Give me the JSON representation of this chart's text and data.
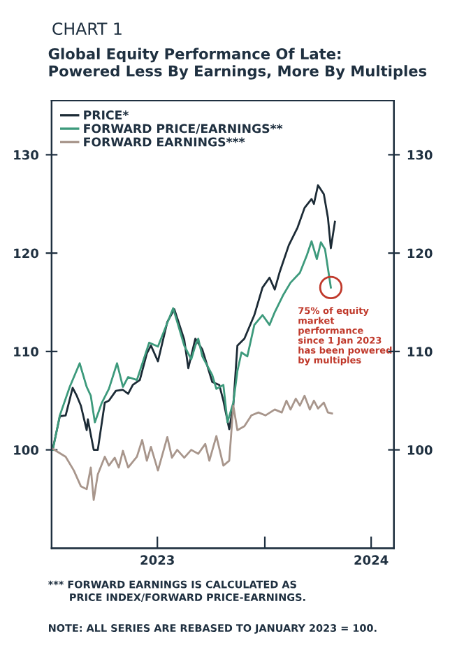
{
  "chart_data": {
    "type": "line",
    "subtitle": "CHART 1",
    "title": "Global Equity Performance Of Late:\nPowered Less By Earnings, More By Multiples",
    "series": [
      {
        "name": "PRICE*",
        "color": "#1c2b36",
        "x": [
          "2023-01-03",
          "2023-01-15",
          "2023-01-25",
          "2023-02-06",
          "2023-02-13",
          "2023-02-20",
          "2023-03-02",
          "2023-03-04",
          "2023-03-14",
          "2023-03-21",
          "2023-04-02",
          "2023-04-09",
          "2023-04-21",
          "2023-05-03",
          "2023-05-12",
          "2023-05-20",
          "2023-06-01",
          "2023-06-13",
          "2023-06-20",
          "2023-07-02",
          "2023-07-18",
          "2023-07-30",
          "2023-08-16",
          "2023-08-23",
          "2023-09-04",
          "2023-09-16",
          "2023-10-03",
          "2023-10-15",
          "2023-10-22",
          "2023-11-01",
          "2023-11-08",
          "2023-11-15",
          "2023-11-27",
          "2023-12-14",
          "2023-12-28",
          "2024-01-09",
          "2024-01-18",
          "2024-01-26",
          "2024-02-11",
          "2024-02-26",
          "2024-03-09",
          "2024-03-21",
          "2024-03-25",
          "2024-04-01",
          "2024-04-11",
          "2024-04-18",
          "2024-04-23",
          "2024-04-30"
        ],
        "values": [
          100.1,
          103.4,
          103.5,
          106.3,
          105.5,
          104.5,
          102,
          103.1,
          100,
          100,
          104.8,
          105,
          106,
          106.1,
          105.7,
          106.6,
          107.1,
          109.8,
          110.6,
          109,
          113,
          114.3,
          111.2,
          108.3,
          111.3,
          110.2,
          106.9,
          106.6,
          105,
          102.1,
          104.5,
          110.6,
          111.3,
          113.7,
          116.5,
          117.5,
          116.3,
          118,
          120.8,
          122.6,
          124.6,
          125.5,
          125,
          126.9,
          126,
          123.6,
          120.5,
          123.2
        ]
      },
      {
        "name": "FORWARD PRICE/EARNINGS**",
        "color": "#3d9a7c",
        "x": [
          "2023-01-03",
          "2023-01-15",
          "2023-02-01",
          "2023-02-18",
          "2023-03-02",
          "2023-03-09",
          "2023-03-16",
          "2023-03-28",
          "2023-04-09",
          "2023-04-23",
          "2023-05-03",
          "2023-05-12",
          "2023-05-27",
          "2023-06-17",
          "2023-07-02",
          "2023-07-14",
          "2023-07-28",
          "2023-08-16",
          "2023-08-28",
          "2023-09-04",
          "2023-09-09",
          "2023-09-16",
          "2023-10-03",
          "2023-10-10",
          "2023-10-22",
          "2023-10-29",
          "2023-11-08",
          "2023-11-15",
          "2023-11-22",
          "2023-12-02",
          "2023-12-14",
          "2023-12-28",
          "2024-01-09",
          "2024-01-18",
          "2024-02-02",
          "2024-02-14",
          "2024-03-01",
          "2024-03-13",
          "2024-03-21",
          "2024-03-30",
          "2024-04-06",
          "2024-04-13",
          "2024-04-23"
        ],
        "values": [
          100,
          103.5,
          106.4,
          108.8,
          106.4,
          105.5,
          102.8,
          104.8,
          106.2,
          108.8,
          106.4,
          107.4,
          107.1,
          110.9,
          110.5,
          112.3,
          114.4,
          110.6,
          109.2,
          110.6,
          111.3,
          109.5,
          107.6,
          106.2,
          106.6,
          102.8,
          104.8,
          108,
          109.9,
          109.5,
          112.7,
          113.7,
          112.7,
          114,
          115.8,
          117,
          118,
          119.8,
          121.2,
          119.4,
          121.1,
          120.4,
          116.5
        ]
      },
      {
        "name": "FORWARD EARNINGS***",
        "color": "#a8968c",
        "x": [
          "2023-01-03",
          "2023-01-25",
          "2023-02-08",
          "2023-02-20",
          "2023-03-02",
          "2023-03-09",
          "2023-03-14",
          "2023-03-21",
          "2023-04-02",
          "2023-04-09",
          "2023-04-19",
          "2023-04-26",
          "2023-05-03",
          "2023-05-12",
          "2023-05-27",
          "2023-06-05",
          "2023-06-13",
          "2023-06-20",
          "2023-07-02",
          "2023-07-18",
          "2023-07-26",
          "2023-08-04",
          "2023-08-16",
          "2023-08-28",
          "2023-09-09",
          "2023-09-21",
          "2023-09-28",
          "2023-10-10",
          "2023-10-22",
          "2023-11-01",
          "2023-11-08",
          "2023-11-15",
          "2023-11-27",
          "2023-12-09",
          "2023-12-21",
          "2024-01-02",
          "2024-01-18",
          "2024-01-30",
          "2024-02-07",
          "2024-02-14",
          "2024-02-23",
          "2024-03-01",
          "2024-03-09",
          "2024-03-18",
          "2024-03-25",
          "2024-04-01",
          "2024-04-11",
          "2024-04-18",
          "2024-04-25"
        ],
        "values": [
          100.1,
          99.3,
          97.9,
          96.3,
          96,
          98.2,
          94.9,
          97.5,
          99.3,
          98.4,
          99.2,
          98.2,
          99.9,
          98.2,
          99.3,
          101,
          98.9,
          100.3,
          97.9,
          101.3,
          99.2,
          100,
          99.2,
          100,
          99.6,
          100.6,
          98.9,
          101.4,
          98.4,
          98.9,
          104.5,
          102,
          102.4,
          103.5,
          103.8,
          103.5,
          104.1,
          103.8,
          105,
          104.1,
          105.2,
          104.5,
          105.5,
          104.1,
          105,
          104.2,
          104.8,
          103.8,
          103.7
        ]
      }
    ],
    "xlim": [
      "2023-01-01",
      "2024-08-09"
    ],
    "xticks": [
      {
        "value": "2023-07-01",
        "label": "2023"
      },
      {
        "value": "2024-01-01",
        "label": null
      },
      {
        "value": "2024-07-01",
        "label": "2024"
      }
    ],
    "ylim": [
      90,
      135.5
    ],
    "yticks": [
      100,
      110,
      120,
      130
    ],
    "y2lim": [
      90,
      135.5
    ],
    "y2ticks": [
      100,
      110,
      120,
      130
    ],
    "grid": false,
    "legend": "top left",
    "annotations": [
      {
        "text": "75% of equity\nmarket\nperformance\nsince 1 Jan 2023\nhas been powered\nby multiples",
        "x": "2024-04-23",
        "y": 116.5
      },
      "*** FORWARD EARNINGS IS CALCULATED AS\n      PRICE INDEX/FORWARD PRICE-EARNINGS.",
      "NOTE: ALL SERIES ARE REBASED TO JANUARY 2023 = 100."
    ]
  }
}
